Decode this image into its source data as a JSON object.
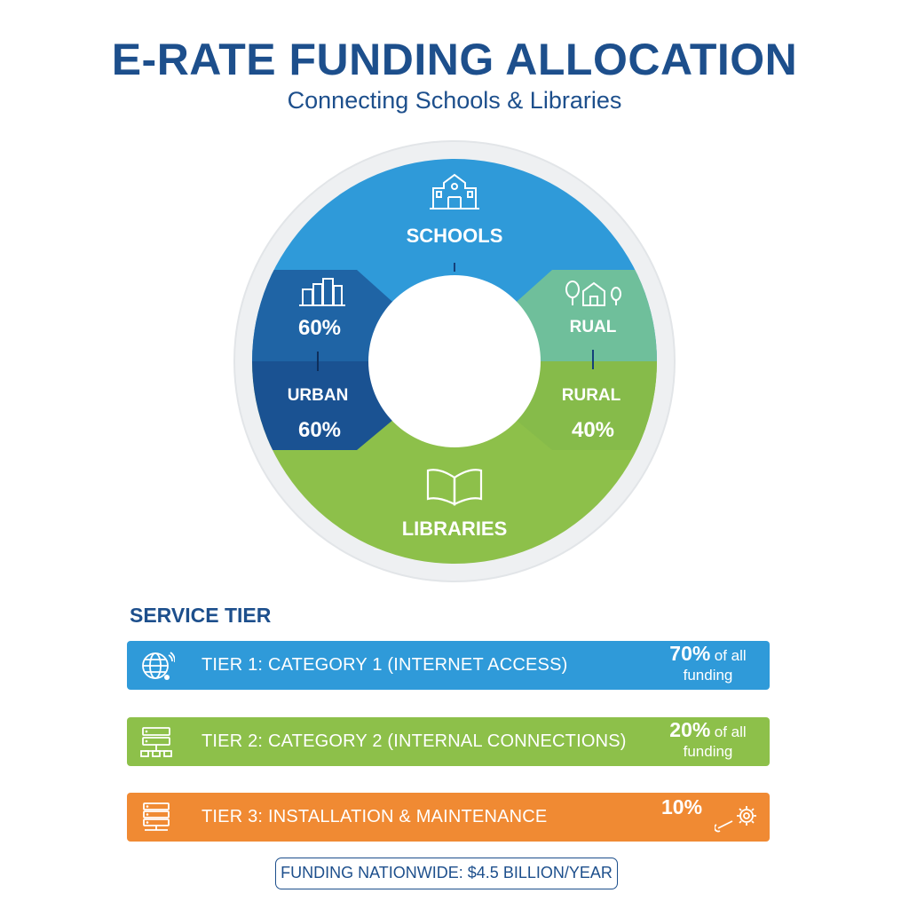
{
  "title": "E-RATE FUNDING ALLOCATION",
  "subtitle": "Connecting Schools & Libraries",
  "donut": {
    "schools_label": "SCHOOLS",
    "libraries_label": "LIBRARIES",
    "urban_pct_top": "60%",
    "urban_label": "URBAN",
    "urban_pct": "60%",
    "rural_label_top": "RUAL",
    "rural_label": "RURAL",
    "rural_pct": "40%",
    "colors": {
      "schools": "#2f9ad9",
      "libraries": "#8dc04a",
      "urban_top": "#1f64a5",
      "urban_bottom": "#1a5292",
      "rural_top": "#6fbf9b",
      "rural_bottom": "#86bb4a"
    }
  },
  "service_tier": {
    "heading": "SERVICE TIER",
    "tiers": [
      {
        "label": "TIER 1: CATEGORY 1 (INTERNET ACCESS)",
        "pct": "70%",
        "suffix": "of all",
        "note": "funding",
        "color": "#2f9ad9",
        "icon": "globe-icon"
      },
      {
        "label": "TIER 2: CATEGORY 2 (INTERNAL CONNECTIONS)",
        "pct": "20%",
        "suffix": "of all",
        "note": "funding",
        "color": "#8dc04a",
        "icon": "network-icon"
      },
      {
        "label": "TIER 3: INSTALLATION & MAINTENANCE",
        "pct": "10%",
        "color": "#f08a33",
        "icon": "server-icon"
      }
    ]
  },
  "footer": "FUNDING NATIONWIDE: $4.5 BILLION/YEAR"
}
